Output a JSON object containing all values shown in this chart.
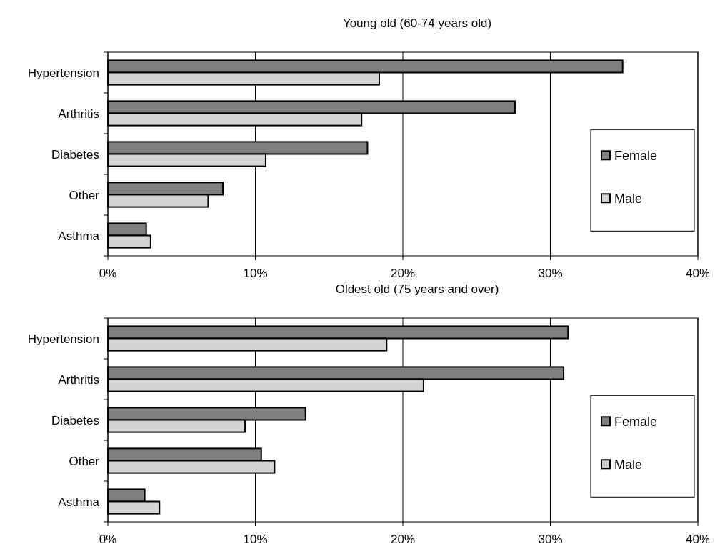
{
  "chart_data": [
    {
      "type": "bar",
      "orientation": "horizontal",
      "title": "Young old (60-74 years old)",
      "categories": [
        "Hypertension",
        "Arthritis",
        "Diabetes",
        "Other",
        "Asthma"
      ],
      "series": [
        {
          "name": "Female",
          "color": "#7f7f7f",
          "values": [
            34.9,
            27.6,
            17.6,
            7.8,
            2.6
          ]
        },
        {
          "name": "Male",
          "color": "#d4d4d4",
          "values": [
            18.4,
            17.2,
            10.7,
            6.8,
            2.9
          ]
        }
      ],
      "xlim": [
        0,
        40
      ],
      "xticks": [
        {
          "value": 0,
          "label": "0%"
        },
        {
          "value": 10,
          "label": "10%"
        },
        {
          "value": 20,
          "label": "20%"
        },
        {
          "value": 30,
          "label": "30%"
        },
        {
          "value": 40,
          "label": "40%"
        }
      ],
      "grid": "x",
      "legend": "right"
    },
    {
      "type": "bar",
      "orientation": "horizontal",
      "title": "Oldest old (75 years and over)",
      "categories": [
        "Hypertension",
        "Arthritis",
        "Diabetes",
        "Other",
        "Asthma"
      ],
      "series": [
        {
          "name": "Female",
          "color": "#7f7f7f",
          "values": [
            31.2,
            30.9,
            13.4,
            10.4,
            2.5
          ]
        },
        {
          "name": "Male",
          "color": "#d4d4d4",
          "values": [
            18.9,
            21.4,
            9.3,
            11.3,
            3.5
          ]
        }
      ],
      "xlim": [
        0,
        40
      ],
      "xticks": [
        {
          "value": 0,
          "label": "0%"
        },
        {
          "value": 10,
          "label": "10%"
        },
        {
          "value": 20,
          "label": "20%"
        },
        {
          "value": 30,
          "label": "30%"
        },
        {
          "value": 40,
          "label": "40%"
        }
      ],
      "grid": "x",
      "legend": "right"
    }
  ]
}
